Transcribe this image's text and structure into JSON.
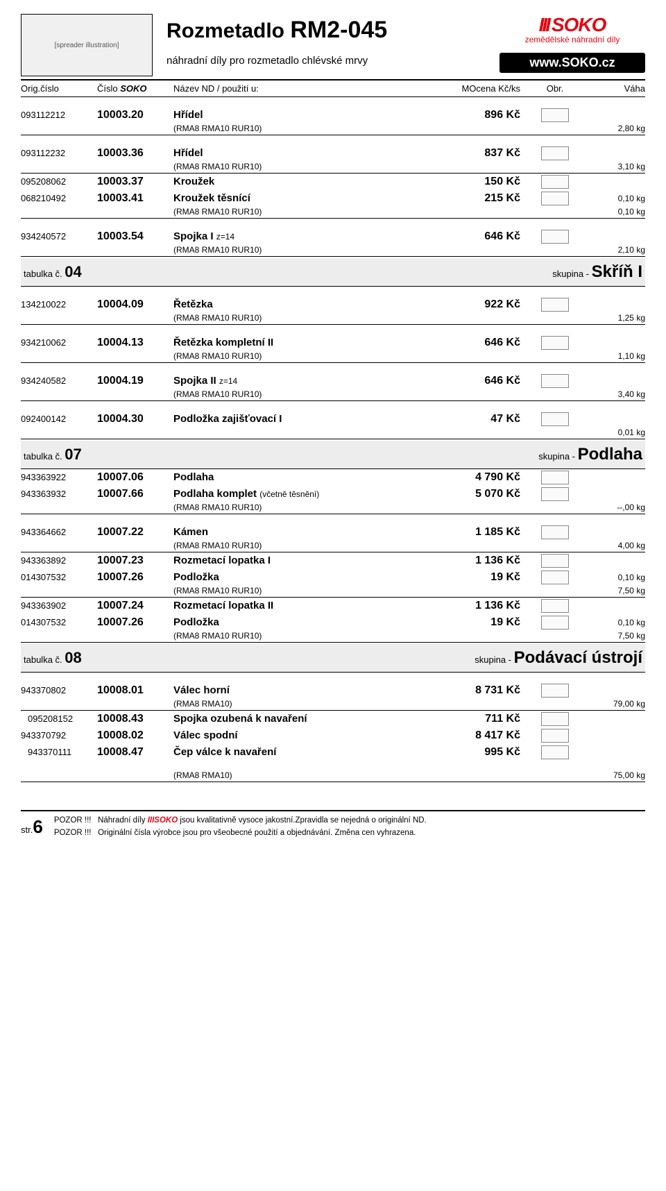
{
  "header": {
    "title_pre": "Rozmetadlo",
    "title_main": "RM2-045",
    "subtitle": "náhradní díly pro rozmetadlo chlévské mrvy",
    "brand_bars": "III",
    "brand": "SOKO",
    "brand_sub": "zemědělské náhradní díly",
    "website": "www.SOKO.cz"
  },
  "cols": {
    "c1": "Orig.číslo",
    "c2a": "Číslo",
    "c2b": "SOKO",
    "c3": "Název ND / použití u:",
    "c4": "MOcena Kč/ks",
    "c5": "Obr.",
    "c6": "Váha"
  },
  "note_common": "(RMA8 RMA10 RUR10)",
  "note_rma": "(RMA8 RMA10)",
  "rows": [
    {
      "orig": "093112212",
      "soko": "10003.20",
      "name": "Hřídel",
      "price": "896 Kč",
      "wt": "2,80 kg",
      "note": true,
      "topgap": true
    },
    {
      "orig": "093112232",
      "soko": "10003.36",
      "name": "Hřídel",
      "price": "837 Kč",
      "wt": "3,10 kg",
      "note": true,
      "topgap": true
    },
    {
      "orig": "095208062",
      "soko": "10003.37",
      "name": "Kroužek",
      "price": "150 Kč",
      "wt": "",
      "note": false
    },
    {
      "orig": "068210492",
      "soko": "10003.41",
      "name": "Kroužek těsnící",
      "price": "215 Kč",
      "wt": "0,10 kg",
      "note": false,
      "inline_wt": true
    },
    {
      "subonly": true,
      "wt": "0,10 kg",
      "note": true
    },
    {
      "orig": "934240572",
      "soko": "10003.54",
      "name": "Spojka I",
      "name_sub": "z=14",
      "price": "646 Kč",
      "wt": "2,10 kg",
      "note": true,
      "topgap": true
    }
  ],
  "section04": {
    "left_a": "tabulka č.",
    "left_b": "04",
    "right_a": "skupina -",
    "right_b": "Skříň I"
  },
  "rows04": [
    {
      "orig": "134210022",
      "soko": "10004.09",
      "name": "Řetězka",
      "price": "922 Kč",
      "wt": "1,25 kg",
      "note": true,
      "topgap": true
    },
    {
      "orig": "934210062",
      "soko": "10004.13",
      "name": "Řetězka kompletní II",
      "price": "646 Kč",
      "wt": "1,10 kg",
      "note": true,
      "topgap": true
    },
    {
      "orig": "934240582",
      "soko": "10004.19",
      "name": "Spojka II",
      "name_sub": "z=14",
      "price": "646 Kč",
      "wt": "3,40 kg",
      "note": true,
      "topgap": true
    },
    {
      "orig": "092400142",
      "soko": "10004.30",
      "name": "Podložka zajišťovací I",
      "price": "47 Kč",
      "wt": "0,01 kg",
      "note": false,
      "topgap": true,
      "wt_only": true
    }
  ],
  "section07": {
    "left_a": "tabulka č.",
    "left_b": "07",
    "right_a": "skupina -",
    "right_b": "Podlaha"
  },
  "rows07": [
    {
      "orig": "943363922",
      "soko": "10007.06",
      "name": "Podlaha",
      "price": "4 790 Kč"
    },
    {
      "orig": "943363932",
      "soko": "10007.66",
      "name": "Podlaha komplet",
      "name_sub": "(včetně těsnění)",
      "price": "5 070 Kč",
      "wt": "--,00 kg",
      "note": true
    },
    {
      "orig": "943364662",
      "soko": "10007.22",
      "name": "Kámen",
      "price": "1 185 Kč",
      "wt": "4,00 kg",
      "note": true,
      "topgap": true
    },
    {
      "orig": "943363892",
      "soko": "10007.23",
      "name": "Rozmetací lopatka I",
      "price": "1 136 Kč"
    },
    {
      "orig": "014307532",
      "soko": "10007.26",
      "name": "Podložka",
      "price": "19 Kč",
      "wt": "0,10 kg",
      "inline_wt": true
    },
    {
      "subonly": true,
      "wt": "7,50 kg",
      "note": true
    },
    {
      "orig": "943363902",
      "soko": "10007.24",
      "name": "Rozmetací lopatka II",
      "price": "1 136 Kč"
    },
    {
      "orig": "014307532",
      "soko": "10007.26",
      "name": "Podložka",
      "price": "19 Kč",
      "wt": "0,10 kg",
      "inline_wt": true
    },
    {
      "subonly": true,
      "wt": "7,50 kg",
      "note": true
    }
  ],
  "section08": {
    "left_a": "tabulka č.",
    "left_b": "08",
    "right_a": "skupina -",
    "right_b": "Podávací ústrojí"
  },
  "rows08": [
    {
      "orig": "943370802",
      "soko": "10008.01",
      "name": "Válec horní",
      "price": "8 731 Kč",
      "wt": "79,00 kg",
      "note": "rma",
      "topgap": true
    },
    {
      "orig": "095208152",
      "soko": "10008.43",
      "name": "Spojka ozubená k navaření",
      "price": "711 Kč",
      "indent": true
    },
    {
      "orig": "943370792",
      "soko": "10008.02",
      "name": "Válec spodní",
      "price": "8 417 Kč"
    },
    {
      "orig": "943370111",
      "soko": "10008.47",
      "name": "Čep válce k navaření",
      "price": "995 Kč",
      "indent": true
    },
    {
      "subonly": true,
      "wt": "75,00 kg",
      "note": "rma",
      "topgap": true
    }
  ],
  "footer": {
    "page_a": "str.",
    "page_b": "6",
    "l1a": "POZOR !!!",
    "l1b": "Náhradní díly",
    "l1c": "IIISOKO",
    "l1d": "jsou kvalitativně vysoce jakostní.Zpravidla se nejedná o originální ND.",
    "l2a": "POZOR !!!",
    "l2b": "Originální čísla výrobce jsou pro všeobecné použití a objednávání. Změna cen vyhrazena."
  }
}
